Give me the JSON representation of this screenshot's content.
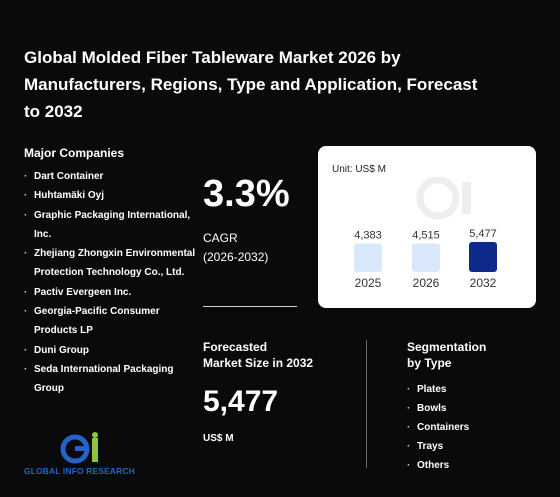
{
  "title": "Global Molded Fiber Tableware Market 2026 by Manufacturers, Regions, Type and Application, Forecast to 2032",
  "companies": {
    "heading": "Major Companies",
    "items": [
      "Dart Container",
      "Huhtamäki Oyj",
      "Graphic Packaging International, Inc.",
      "Zhejiang Zhongxin Environmental Protection Technology Co., Ltd.",
      "Pactiv Evergeen Inc.",
      "Georgia-Pacific Consumer Products LP",
      "Duni Group",
      "Seda International Packaging Group"
    ]
  },
  "cagr": {
    "value": "3.3%",
    "label": "CAGR",
    "period": "(2026-2032)"
  },
  "forecast": {
    "label_line1": "Forecasted",
    "label_line2": "Market Size in 2032",
    "value": "5,477",
    "unit": "US$ M"
  },
  "segmentation": {
    "heading_line1": "Segmentation",
    "heading_line2": "by Type",
    "items": [
      "Plates",
      "Bowls",
      "Containers",
      "Trays",
      "Others"
    ]
  },
  "logo": {
    "text": "GLOBAL INFO RESEARCH",
    "icon": "gir-logo-icon"
  },
  "colors": {
    "background": "#0a0a0a",
    "bar_light": "#d8e8fa",
    "bar_dark": "#0e2a8a",
    "logo_blue": "#2563c9",
    "logo_green": "#8cc63f"
  },
  "chart_data": {
    "type": "bar",
    "unit_label": "Unit: US$ M",
    "categories": [
      "2025",
      "2026",
      "2032"
    ],
    "values": [
      4383,
      4515,
      5477
    ],
    "value_labels": [
      "4,383",
      "4,515",
      "5,477"
    ],
    "highlight_index": 2,
    "title": "",
    "xlabel": "",
    "ylabel": ""
  }
}
